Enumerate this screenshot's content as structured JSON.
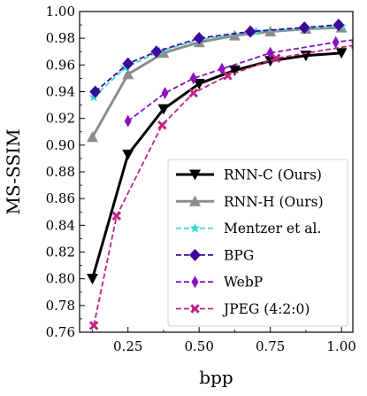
{
  "chart_data": {
    "type": "line",
    "xlabel": "bpp",
    "ylabel": "MS-SSIM",
    "xlim": [
      0.08,
      1.04
    ],
    "ylim": [
      0.76,
      1.0
    ],
    "x_ticks": [
      0.25,
      0.5,
      0.75,
      1.0
    ],
    "x_tick_labels": [
      "0.25",
      "0.50",
      "0.75",
      "1.00"
    ],
    "y_ticks": [
      0.76,
      0.78,
      0.8,
      0.82,
      0.84,
      0.86,
      0.88,
      0.9,
      0.92,
      0.94,
      0.96,
      0.98,
      1.0
    ],
    "y_tick_labels": [
      "0.76",
      "0.78",
      "0.80",
      "0.82",
      "0.84",
      "0.86",
      "0.88",
      "0.90",
      "0.92",
      "0.94",
      "0.96",
      "0.98",
      "1.00"
    ],
    "grid": false,
    "legend_position": "bottom-right",
    "series": [
      {
        "name": "RNN-C (Ours)",
        "color": "#000000",
        "marker": "triangle-down",
        "line_style": "solid",
        "x": [
          0.125,
          0.25,
          0.375,
          0.5,
          0.625,
          0.75,
          0.875,
          1.0
        ],
        "y": [
          0.8,
          0.893,
          0.927,
          0.946,
          0.956,
          0.963,
          0.967,
          0.969
        ]
      },
      {
        "name": "RNN-H (Ours)",
        "color": "#8c8c8c",
        "marker": "triangle-up",
        "line_style": "solid",
        "x": [
          0.125,
          0.25,
          0.375,
          0.5,
          0.625,
          0.75,
          0.875,
          1.0
        ],
        "y": [
          0.906,
          0.953,
          0.969,
          0.977,
          0.982,
          0.985,
          0.987,
          0.988
        ]
      },
      {
        "name": "Mentzer et al.",
        "color": "#3ed6d6",
        "marker": "star",
        "line_style": "dashed",
        "x": [
          0.13,
          0.24,
          0.36,
          0.5,
          0.7,
          1.0
        ],
        "y": [
          0.936,
          0.958,
          0.97,
          0.979,
          0.985,
          0.989
        ]
      },
      {
        "name": "BPG",
        "color": "#3b0a9c",
        "marker": "diamond",
        "line_style": "dashed",
        "x": [
          0.135,
          0.25,
          0.35,
          0.5,
          0.68,
          0.87,
          0.99
        ],
        "y": [
          0.94,
          0.961,
          0.97,
          0.98,
          0.985,
          0.988,
          0.99
        ]
      },
      {
        "name": "WebP",
        "color": "#8a12c2",
        "marker": "thin-diamond",
        "line_style": "dashed",
        "x": [
          0.25,
          0.38,
          0.48,
          0.58,
          0.75,
          0.98,
          1.05
        ],
        "y": [
          0.918,
          0.939,
          0.95,
          0.957,
          0.969,
          0.977,
          0.979
        ]
      },
      {
        "name": "JPEG (4:2:0)",
        "color": "#c02485",
        "marker": "x",
        "line_style": "dashed",
        "x": [
          0.13,
          0.21,
          0.37,
          0.48,
          0.6,
          0.77,
          1.05
        ],
        "y": [
          0.765,
          0.847,
          0.915,
          0.939,
          0.952,
          0.965,
          0.975
        ]
      }
    ]
  }
}
